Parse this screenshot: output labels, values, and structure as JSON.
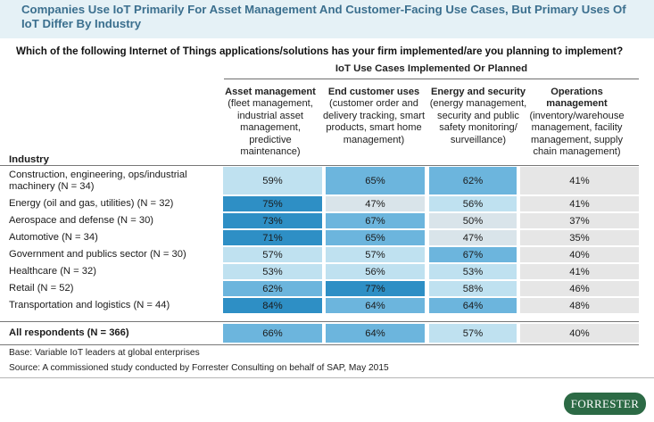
{
  "title": "Companies Use IoT Primarily For Asset Management And Customer-Facing Use Cases, But Primary Uses Of IoT Differ By Industry",
  "question": "Which of the following Internet of Things applications/solutions has your firm implemented/are you planning to implement?",
  "group_header": "IoT Use Cases Implemented Or Planned",
  "industry_header": "Industry",
  "columns": [
    {
      "bold": "Asset management",
      "rest": "(fleet management, industrial asset management, predictive maintenance)"
    },
    {
      "bold": "End customer uses",
      "rest": "(customer order and delivery tracking, smart products, smart home management)"
    },
    {
      "bold": "Energy and security",
      "rest": "(energy management, security and public safety monitoring/ surveillance)"
    },
    {
      "bold": "Operations management",
      "rest": "(inventory/warehouse management, facility management, supply chain management)"
    }
  ],
  "rows": [
    {
      "label": "Construction, engineering, ops/industrial machinery (N = 34)",
      "values": [
        "59%",
        "65%",
        "62%",
        "41%"
      ]
    },
    {
      "label": "Energy (oil and gas, utilities) (N = 32)",
      "values": [
        "75%",
        "47%",
        "56%",
        "41%"
      ]
    },
    {
      "label": "Aerospace and defense (N = 30)",
      "values": [
        "73%",
        "67%",
        "50%",
        "37%"
      ]
    },
    {
      "label": "Automotive (N = 34)",
      "values": [
        "71%",
        "65%",
        "47%",
        "35%"
      ]
    },
    {
      "label": "Government and publics sector (N = 30)",
      "values": [
        "57%",
        "57%",
        "67%",
        "40%"
      ]
    },
    {
      "label": "Healthcare (N = 32)",
      "values": [
        "53%",
        "56%",
        "53%",
        "41%"
      ]
    },
    {
      "label": "Retail (N = 52)",
      "values": [
        "62%",
        "77%",
        "58%",
        "46%"
      ]
    },
    {
      "label": "Transportation and logistics (N = 44)",
      "values": [
        "84%",
        "64%",
        "64%",
        "48%"
      ]
    }
  ],
  "total": {
    "label": "All respondents (N = 366)",
    "values": [
      "66%",
      "64%",
      "57%",
      "40%"
    ]
  },
  "base_note": "Base: Variable IoT leaders at global enterprises",
  "source_note": "Source: A commissioned study conducted by Forrester Consulting on behalf of SAP, May 2015",
  "logo_text": "FORRESTER",
  "colors": {
    "title": "#3b6f8e",
    "title_band": "#e5f1f6",
    "shade_dark": "#2e8fc5",
    "shade_mid": "#6cb5dd",
    "shade_light": "#bfe1f0",
    "shade_pale": "#d9e4ea",
    "operations_gray": "#e6e6e6",
    "logo_green": "#2c6a45"
  },
  "chart_data": {
    "type": "table",
    "title": "Companies Use IoT Primarily For Asset Management And Customer-Facing Use Cases, But Primary Uses Of IoT Differ By Industry",
    "categories": [
      "Construction, engineering, ops/industrial machinery (N = 34)",
      "Energy (oil and gas, utilities) (N = 32)",
      "Aerospace and defense (N = 30)",
      "Automotive (N = 34)",
      "Government and publics sector (N = 30)",
      "Healthcare (N = 32)",
      "Retail (N = 52)",
      "Transportation and logistics (N = 44)",
      "All respondents (N = 366)"
    ],
    "series": [
      {
        "name": "Asset management",
        "values": [
          59,
          75,
          73,
          71,
          57,
          53,
          62,
          84,
          66
        ]
      },
      {
        "name": "End customer uses",
        "values": [
          65,
          47,
          67,
          65,
          57,
          56,
          77,
          64,
          64
        ]
      },
      {
        "name": "Energy and security",
        "values": [
          62,
          56,
          50,
          47,
          67,
          53,
          58,
          64,
          57
        ]
      },
      {
        "name": "Operations management",
        "values": [
          41,
          41,
          37,
          35,
          40,
          41,
          46,
          48,
          40
        ]
      }
    ],
    "unit": "%"
  }
}
